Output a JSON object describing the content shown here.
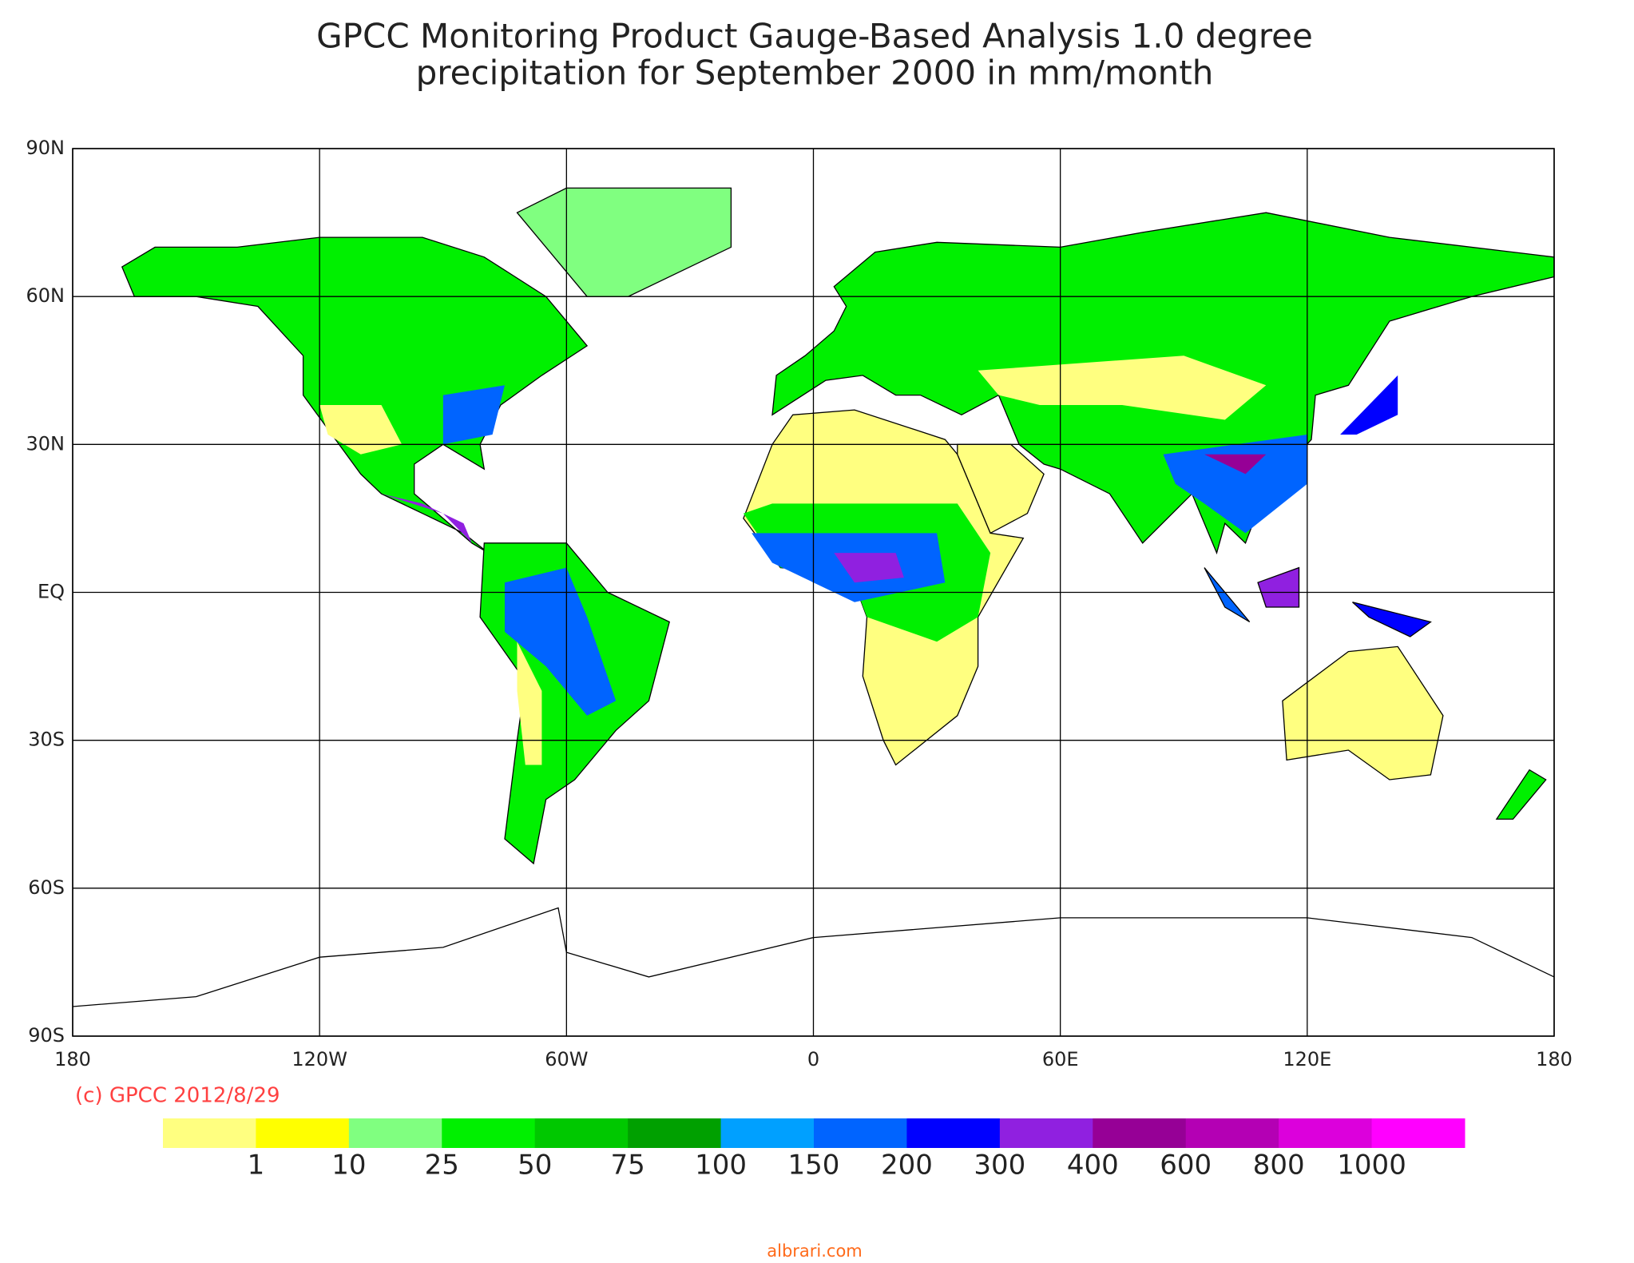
{
  "chart_data": {
    "type": "map",
    "title": "GPCC Monitoring Product Gauge-Based Analysis 1.0 degree",
    "subtitle": "precipitation for September  2000 in mm/month",
    "xlim": [
      -180,
      180
    ],
    "ylim": [
      -90,
      90
    ],
    "xticks": [
      {
        "value": -180,
        "label": "180"
      },
      {
        "value": -120,
        "label": "120W"
      },
      {
        "value": -60,
        "label": "60W"
      },
      0,
      {
        "value": 60,
        "label": "60E"
      },
      {
        "value": 120,
        "label": "120E"
      },
      180
    ],
    "yticks": [
      {
        "value": 90,
        "label": "90N"
      },
      {
        "value": 60,
        "label": "60N"
      },
      {
        "value": 30,
        "label": "30N"
      },
      {
        "value": 0,
        "label": "EQ"
      },
      {
        "value": -30,
        "label": "30S"
      },
      {
        "value": -60,
        "label": "60S"
      },
      {
        "value": -90,
        "label": "90S"
      }
    ],
    "grid": true,
    "legend": {
      "levels": [
        1,
        10,
        25,
        50,
        75,
        100,
        150,
        200,
        300,
        400,
        600,
        800,
        1000
      ],
      "colors": [
        "#ffff80",
        "#ffff00",
        "#80ff80",
        "#00f000",
        "#00c800",
        "#00a000",
        "#00a0ff",
        "#0064ff",
        "#0000ff",
        "#9020e0",
        "#960096",
        "#b400b4",
        "#dc00dc",
        "#ff00ff"
      ]
    },
    "copyright": "(c) GPCC 2012/8/29",
    "watermark": "albrari.com"
  }
}
